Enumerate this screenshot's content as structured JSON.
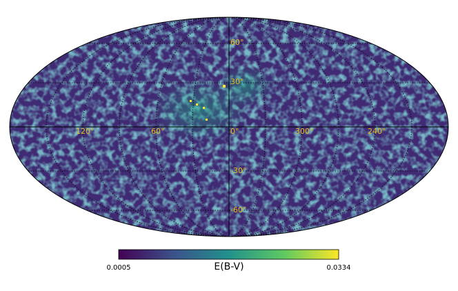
{
  "map": {
    "longitude_labels": [
      "120°",
      "60°",
      "0°",
      "300°",
      "240°"
    ],
    "latitude_labels": [
      "60°",
      "30°",
      "-30°",
      "-60°"
    ]
  },
  "colorbar": {
    "min": 0.0005,
    "max": 0.0334,
    "label": "E(B-V)"
  }
}
